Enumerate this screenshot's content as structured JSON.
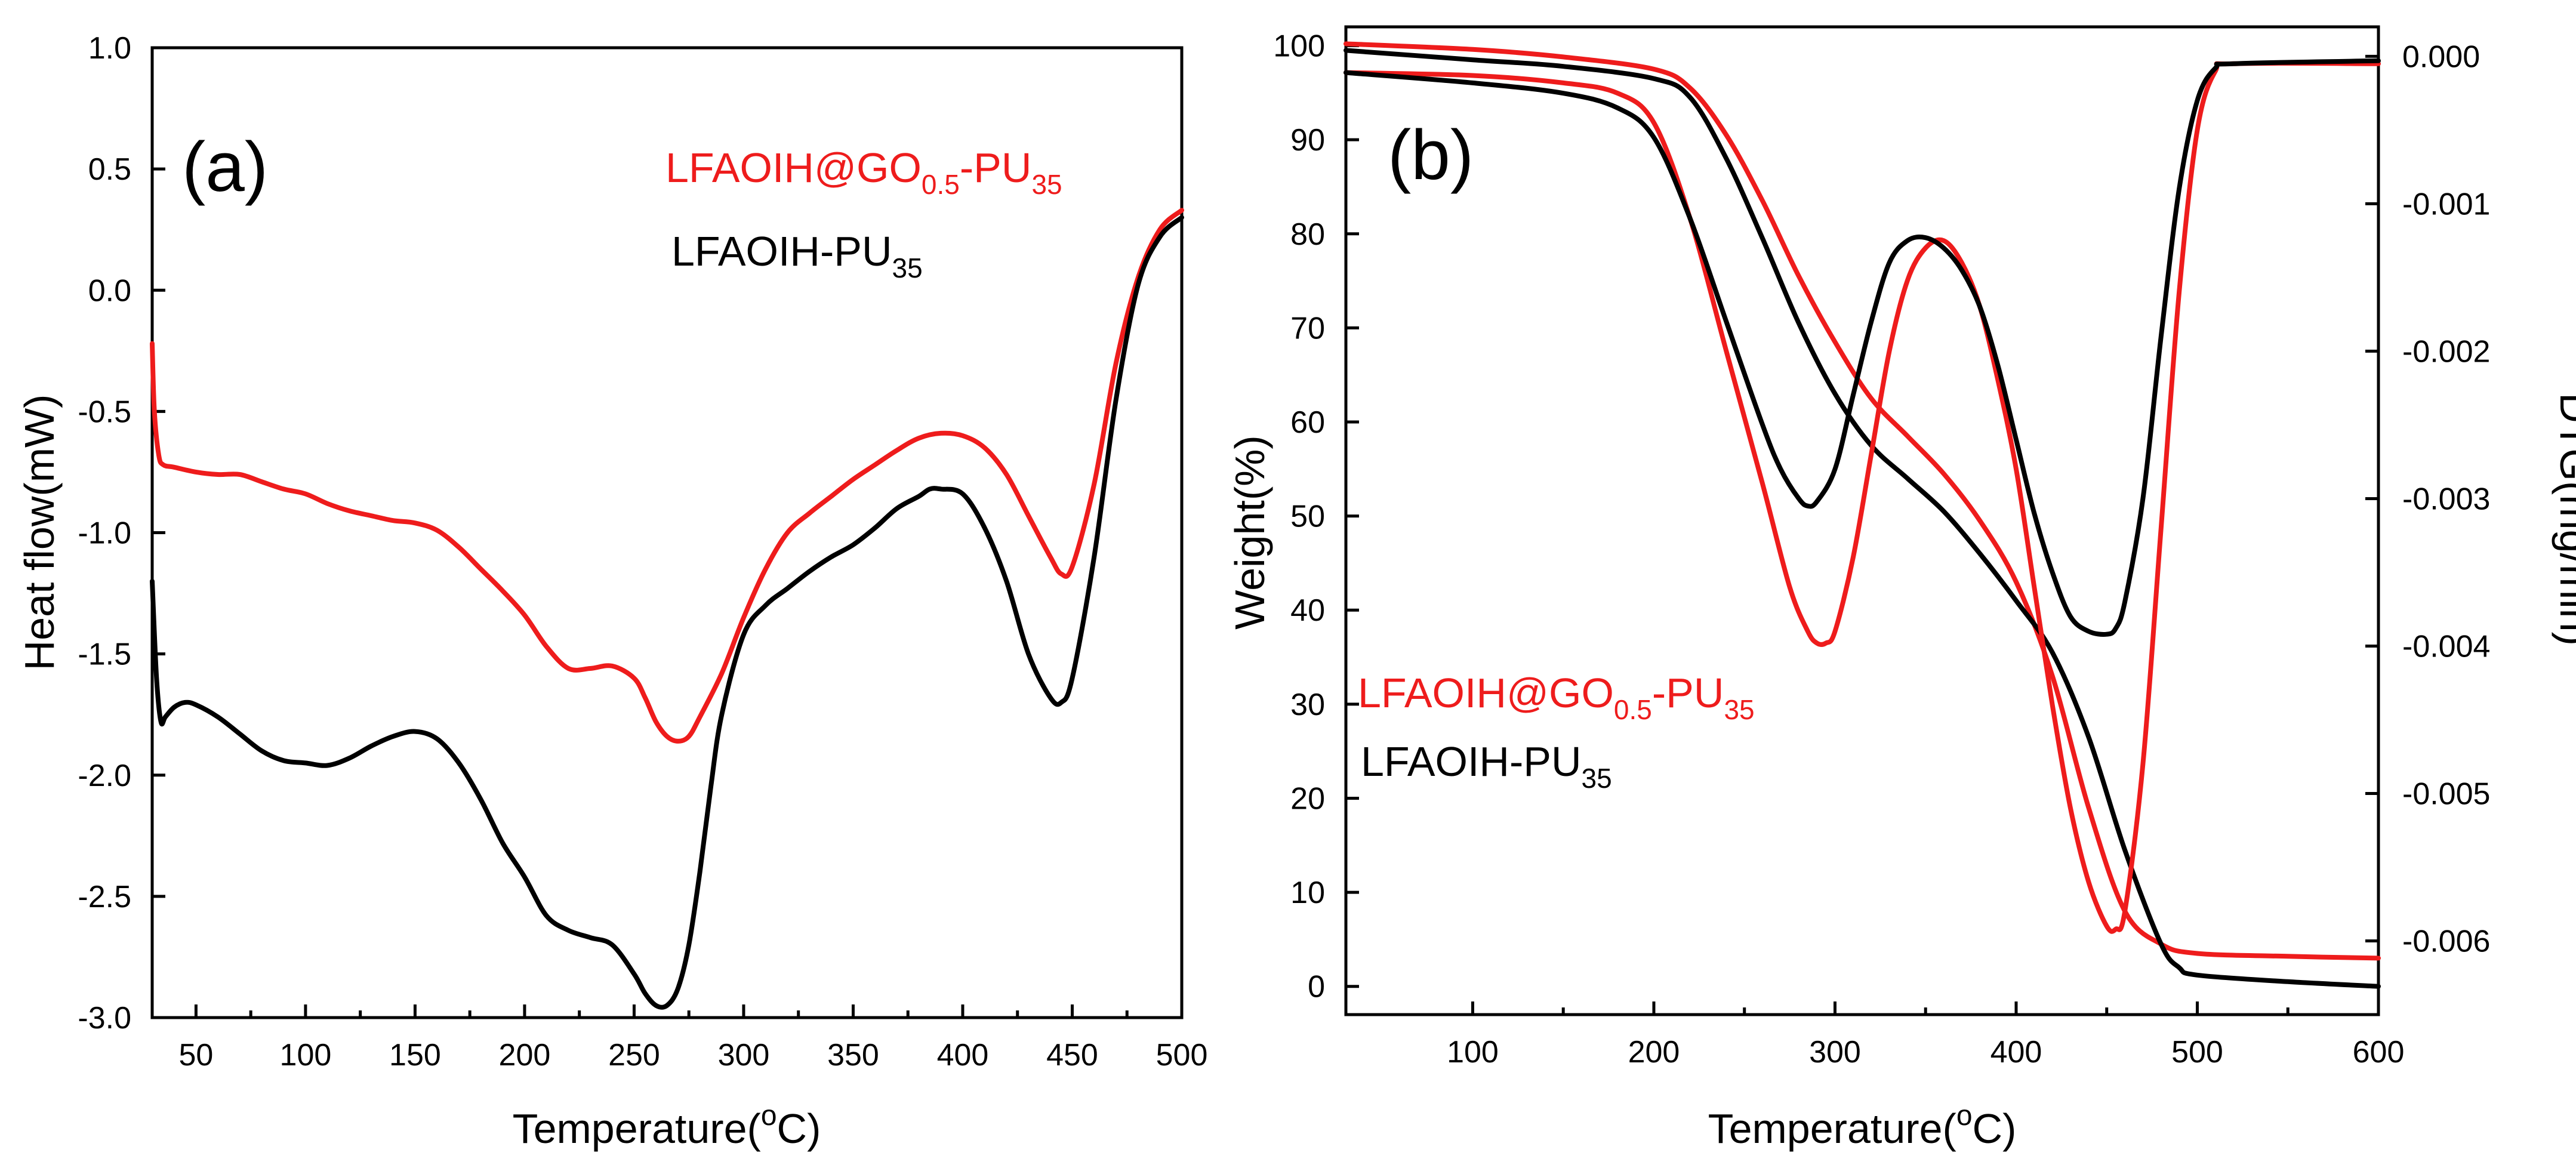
{
  "colors": {
    "red": "#ee1c1c",
    "black": "#000000"
  },
  "chart_data": [
    {
      "type": "line",
      "panel_label": "(a)",
      "xlabel": "Temperature(oC)",
      "xlabel_parts": {
        "before": "Temperature(",
        "sup": "o",
        "after": "C)"
      },
      "ylabel": "Heat flow(mW)",
      "xlim": [
        30,
        500
      ],
      "ylim": [
        -3.0,
        1.0
      ],
      "x_ticks": [
        50,
        100,
        150,
        200,
        250,
        300,
        350,
        400,
        450,
        500
      ],
      "x_tick_labels": [
        "50",
        "100",
        "150",
        "200",
        "250",
        "300",
        "350",
        "400",
        "450",
        "500"
      ],
      "y_ticks": [
        -3.0,
        -2.5,
        -2.0,
        -1.5,
        -1.0,
        -0.5,
        0.0,
        0.5,
        1.0
      ],
      "y_tick_labels": [
        "-3.0",
        "-2.5",
        "-2.0",
        "-1.5",
        "-1.0",
        "-0.5",
        "0.0",
        "0.5",
        "1.0"
      ],
      "legend": [
        {
          "name": "LFAOIH@GO0.5-PU35",
          "base": "LFAOIH@GO",
          "sub1": "0.5",
          "mid": "-PU",
          "sub2": "35",
          "color": "#ee1c1c"
        },
        {
          "name": "LFAOIH-PU35",
          "base": "LFAOIH-PU",
          "sub1": "35",
          "mid": "",
          "sub2": "",
          "color": "#000000"
        }
      ],
      "series": [
        {
          "name": "LFAOIH@GO0.5-PU35",
          "color": "#ee1c1c",
          "x": [
            30,
            31,
            33,
            35,
            40,
            50,
            60,
            70,
            80,
            90,
            100,
            110,
            120,
            130,
            140,
            150,
            160,
            170,
            180,
            190,
            200,
            210,
            220,
            230,
            240,
            250,
            255,
            260,
            265,
            270,
            275,
            280,
            290,
            300,
            310,
            320,
            330,
            340,
            350,
            360,
            370,
            380,
            390,
            400,
            410,
            420,
            430,
            440,
            445,
            450,
            460,
            470,
            480,
            490,
            500
          ],
          "y": [
            -0.22,
            -0.5,
            -0.68,
            -0.72,
            -0.73,
            -0.75,
            -0.76,
            -0.76,
            -0.79,
            -0.82,
            -0.84,
            -0.88,
            -0.91,
            -0.93,
            -0.95,
            -0.96,
            -0.99,
            -1.06,
            -1.15,
            -1.24,
            -1.34,
            -1.47,
            -1.56,
            -1.56,
            -1.55,
            -1.6,
            -1.68,
            -1.78,
            -1.84,
            -1.86,
            -1.84,
            -1.76,
            -1.58,
            -1.35,
            -1.15,
            -1.0,
            -0.92,
            -0.85,
            -0.78,
            -0.72,
            -0.66,
            -0.61,
            -0.59,
            -0.6,
            -0.65,
            -0.76,
            -0.93,
            -1.1,
            -1.17,
            -1.14,
            -0.8,
            -0.3,
            0.05,
            0.25,
            0.33
          ]
        },
        {
          "name": "LFAOIH-PU35",
          "color": "#000000",
          "x": [
            30,
            32,
            34,
            36,
            40,
            45,
            50,
            60,
            70,
            80,
            90,
            100,
            110,
            120,
            130,
            140,
            150,
            160,
            170,
            180,
            190,
            200,
            210,
            220,
            230,
            240,
            250,
            255,
            260,
            265,
            270,
            275,
            280,
            285,
            290,
            300,
            310,
            320,
            330,
            340,
            350,
            360,
            370,
            380,
            385,
            390,
            400,
            410,
            420,
            430,
            440,
            445,
            450,
            460,
            470,
            480,
            490,
            500
          ],
          "y": [
            -1.2,
            -1.6,
            -1.78,
            -1.76,
            -1.72,
            -1.7,
            -1.71,
            -1.76,
            -1.83,
            -1.9,
            -1.94,
            -1.95,
            -1.96,
            -1.93,
            -1.88,
            -1.84,
            -1.82,
            -1.85,
            -1.95,
            -2.1,
            -2.28,
            -2.42,
            -2.58,
            -2.64,
            -2.67,
            -2.7,
            -2.82,
            -2.9,
            -2.95,
            -2.95,
            -2.88,
            -2.7,
            -2.4,
            -2.05,
            -1.75,
            -1.42,
            -1.3,
            -1.23,
            -1.16,
            -1.1,
            -1.05,
            -0.98,
            -0.9,
            -0.85,
            -0.82,
            -0.82,
            -0.84,
            -0.98,
            -1.2,
            -1.5,
            -1.68,
            -1.7,
            -1.6,
            -1.1,
            -0.45,
            0.02,
            0.22,
            0.3
          ]
        }
      ]
    },
    {
      "type": "line",
      "panel_label": "(b)",
      "xlabel": "Temperature(oC)",
      "xlabel_parts": {
        "before": "Temperature(",
        "sup": "o",
        "after": "C)"
      },
      "ylabel": "Weight(%)",
      "y2label": "DTG(mg/min)",
      "xlim": [
        30,
        600
      ],
      "ylim": [
        -3,
        102
      ],
      "y2lim": [
        -0.0065,
        0.0002
      ],
      "x_ticks": [
        100,
        200,
        300,
        400,
        500,
        600
      ],
      "x_tick_labels": [
        "100",
        "200",
        "300",
        "400",
        "500",
        "600"
      ],
      "y_ticks": [
        0,
        10,
        20,
        30,
        40,
        50,
        60,
        70,
        80,
        90,
        100
      ],
      "y_tick_labels": [
        "0",
        "10",
        "20",
        "30",
        "40",
        "50",
        "60",
        "70",
        "80",
        "90",
        "100"
      ],
      "y2_ticks": [
        0.0,
        -0.001,
        -0.002,
        -0.003,
        -0.004,
        -0.005,
        -0.006
      ],
      "y2_tick_labels": [
        "0.000",
        "-0.001",
        "-0.002",
        "-0.003",
        "-0.004",
        "-0.005",
        "-0.006"
      ],
      "legend": [
        {
          "name": "LFAOIH@GO0.5-PU35",
          "base": "LFAOIH@GO",
          "sub1": "0.5",
          "mid": "-PU",
          "sub2": "35",
          "color": "#ee1c1c"
        },
        {
          "name": "LFAOIH-PU35",
          "base": "LFAOIH-PU",
          "sub1": "35",
          "mid": "",
          "sub2": "",
          "color": "#000000"
        }
      ],
      "series": [
        {
          "name": "LFAOIH@GO0.5-PU35 weight",
          "axis": "left",
          "color": "#ee1c1c",
          "x": [
            30,
            100,
            150,
            200,
            220,
            240,
            260,
            280,
            300,
            320,
            340,
            360,
            380,
            400,
            420,
            440,
            460,
            480,
            500,
            550,
            600
          ],
          "y": [
            100.2,
            99.6,
            98.8,
            97.5,
            95.5,
            90.5,
            83.5,
            75.5,
            68.5,
            62.5,
            58.5,
            54.5,
            49.5,
            43.0,
            33.0,
            19.0,
            8.0,
            4.5,
            3.5,
            3.2,
            3.0
          ]
        },
        {
          "name": "LFAOIH-PU35 weight",
          "axis": "left",
          "color": "#000000",
          "x": [
            30,
            100,
            150,
            200,
            220,
            240,
            260,
            280,
            300,
            320,
            340,
            360,
            380,
            400,
            420,
            440,
            460,
            480,
            490,
            500,
            550,
            600
          ],
          "y": [
            99.5,
            98.5,
            97.8,
            96.5,
            94.5,
            88.0,
            79.5,
            70.5,
            63.0,
            57.5,
            54.0,
            50.5,
            46.0,
            41.0,
            35.5,
            26.5,
            14.5,
            4.5,
            2.0,
            1.2,
            0.5,
            0.0
          ]
        },
        {
          "name": "LFAOIH@GO0.5-PU35 DTG",
          "axis": "right",
          "color": "#ee1c1c",
          "x": [
            30,
            100,
            150,
            180,
            200,
            220,
            240,
            260,
            275,
            285,
            290,
            295,
            300,
            310,
            320,
            330,
            340,
            350,
            360,
            370,
            380,
            390,
            400,
            410,
            420,
            430,
            440,
            450,
            455,
            460,
            470,
            480,
            490,
            500,
            510,
            520,
            600
          ],
          "y": [
            -0.00011,
            -0.00013,
            -0.00018,
            -0.00025,
            -0.00045,
            -0.0011,
            -0.002,
            -0.0029,
            -0.0036,
            -0.0039,
            -0.00398,
            -0.00398,
            -0.0039,
            -0.0034,
            -0.0027,
            -0.002,
            -0.00152,
            -0.0013,
            -0.00125,
            -0.0014,
            -0.0017,
            -0.0022,
            -0.0028,
            -0.0036,
            -0.0044,
            -0.0051,
            -0.0056,
            -0.0059,
            -0.00592,
            -0.0058,
            -0.0048,
            -0.0032,
            -0.0016,
            -0.0005,
            -0.0001,
            -5e-05,
            -5e-05
          ]
        },
        {
          "name": "LFAOIH-PU35 DTG",
          "axis": "right",
          "color": "#000000",
          "x": [
            30,
            100,
            150,
            180,
            200,
            220,
            240,
            260,
            270,
            280,
            285,
            290,
            300,
            310,
            320,
            330,
            340,
            350,
            360,
            370,
            380,
            390,
            400,
            410,
            420,
            430,
            440,
            450,
            455,
            460,
            470,
            480,
            490,
            500,
            510,
            520,
            600
          ],
          "y": [
            -0.00011,
            -0.00018,
            -0.00025,
            -0.00035,
            -0.00055,
            -0.0011,
            -0.0018,
            -0.0025,
            -0.0028,
            -0.003,
            -0.00305,
            -0.00302,
            -0.0028,
            -0.0023,
            -0.0018,
            -0.0014,
            -0.00125,
            -0.00123,
            -0.0013,
            -0.00145,
            -0.0017,
            -0.0021,
            -0.0026,
            -0.0031,
            -0.0035,
            -0.0038,
            -0.0039,
            -0.00392,
            -0.00388,
            -0.0037,
            -0.003,
            -0.0019,
            -0.0009,
            -0.0003,
            -8e-05,
            -5e-05,
            -3e-05
          ]
        }
      ]
    }
  ]
}
